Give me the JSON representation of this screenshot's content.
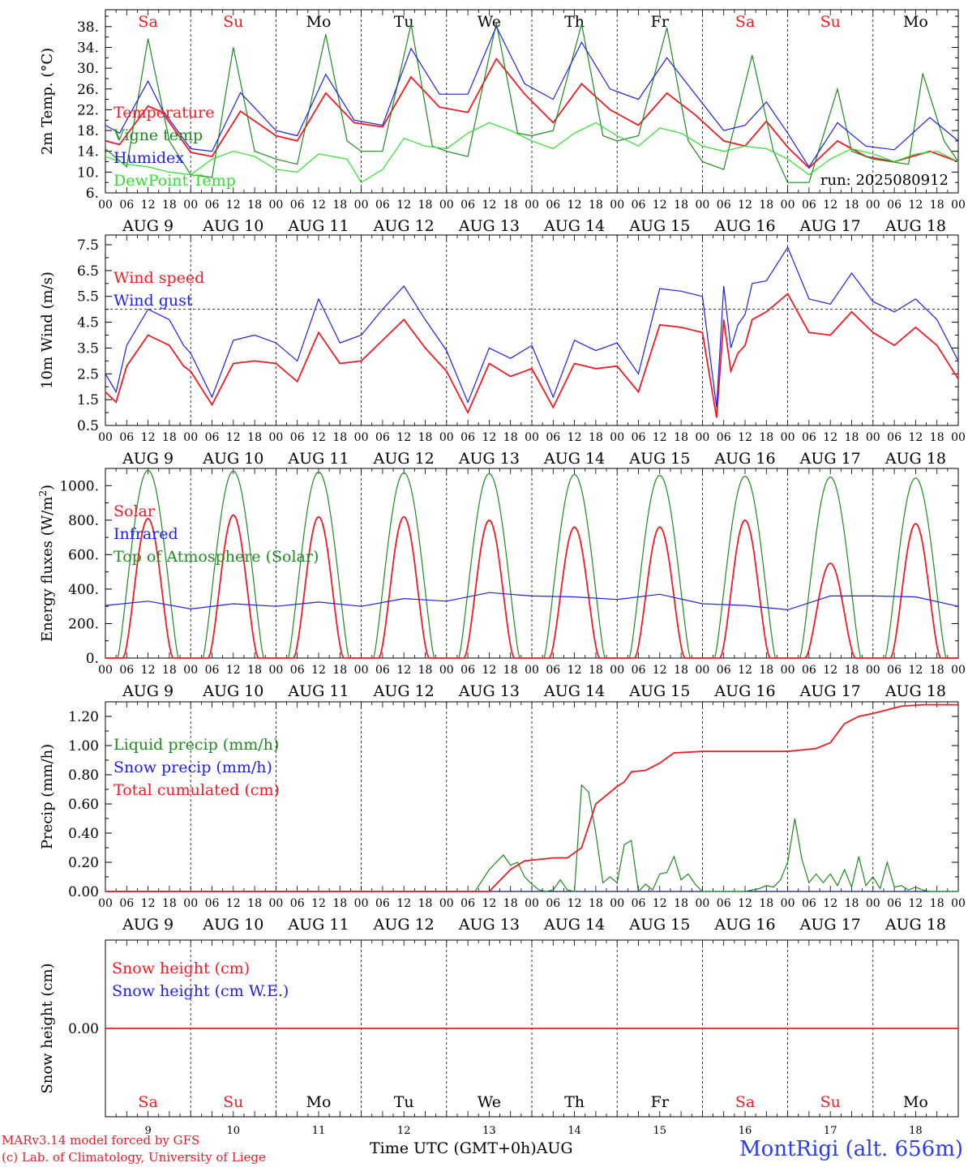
{
  "site_label": "MontRigi (alt. 656m)",
  "credit_model": "MARv3.14 model forced by GFS",
  "credit_lab": "(c) Lab. of Climatology, University of Liege",
  "x_axis_title": "Time UTC (GMT+0h)",
  "month_label": "AUG",
  "run_label": "run: 2025080912",
  "days": {
    "weekday": [
      "Sa",
      "Su",
      "Mo",
      "Tu",
      "We",
      "Th",
      "Fr",
      "Sa",
      "Su",
      "Mo"
    ],
    "weekend": [
      true,
      true,
      false,
      false,
      false,
      false,
      false,
      true,
      true,
      false
    ],
    "date_labels": [
      "AUG  9",
      "AUG 10",
      "AUG 11",
      "AUG 12",
      "AUG 13",
      "AUG 14",
      "AUG 15",
      "AUG 16",
      "AUG 17",
      "AUG 18"
    ],
    "date_numbers": [
      "9",
      "10",
      "11",
      "12",
      "13",
      "14",
      "15",
      "16",
      "17",
      "18"
    ],
    "hour_ticks": [
      "00",
      "06",
      "12",
      "18"
    ],
    "last_tick": "00"
  },
  "colors": {
    "red": "#ee1c25",
    "green": "#1f8a1f",
    "blue": "#1f1fe6",
    "lightgreen": "#2ee02e"
  },
  "chart_data": [
    {
      "type": "line",
      "id": "temperature",
      "ylabel": "2m Temp. (°C)",
      "ylim": [
        6,
        40
      ],
      "yticks": [
        "6.",
        "10.",
        "14.",
        "18.",
        "22.",
        "26.",
        "30.",
        "34.",
        "38."
      ],
      "legend": [
        "Temperature",
        "Vigne temp",
        "Humidex",
        "DewPoint Temp"
      ],
      "series": [
        {
          "name": "Temperature",
          "color": "red",
          "x_hours": [
            0,
            4,
            12,
            16,
            24,
            30,
            38,
            48,
            54,
            62,
            70,
            78,
            86,
            94,
            102,
            110,
            118,
            126,
            134,
            142,
            150,
            158,
            166,
            174,
            180,
            186,
            192,
            198,
            206,
            214,
            222,
            232,
            240
          ],
          "y": [
            16,
            15.3,
            22.7,
            21.5,
            13.8,
            13,
            21.7,
            17,
            16,
            25.2,
            19.5,
            18.7,
            28.3,
            22.5,
            21.5,
            31.8,
            25,
            19.5,
            27,
            22,
            19,
            25.2,
            21,
            16,
            15,
            19.8,
            14.8,
            10.8,
            16,
            13,
            12,
            14,
            12
          ]
        },
        {
          "name": "Vigne temp",
          "color": "green",
          "x_hours": [
            0,
            6,
            12,
            18,
            24,
            30,
            36,
            42,
            48,
            54,
            62,
            68,
            72,
            78,
            86,
            92,
            96,
            102,
            110,
            116,
            120,
            126,
            134,
            140,
            144,
            150,
            158,
            164,
            168,
            174,
            182,
            188,
            192,
            198,
            206,
            210,
            216,
            226,
            230,
            236,
            240
          ],
          "y": [
            14.5,
            11,
            35.7,
            16,
            9.5,
            9,
            34,
            14,
            12.5,
            11.5,
            36.5,
            16,
            14,
            14,
            38.5,
            15,
            14,
            13,
            38.7,
            17.5,
            17,
            18,
            38.5,
            17,
            16,
            17,
            37.8,
            16,
            12,
            10.5,
            32.5,
            14,
            8,
            8,
            26,
            14,
            12.5,
            11.5,
            29,
            16,
            12
          ]
        },
        {
          "name": "Humidex",
          "color": "blue",
          "x_hours": [
            0,
            4,
            12,
            16,
            24,
            30,
            38,
            48,
            54,
            62,
            70,
            78,
            86,
            94,
            102,
            110,
            118,
            126,
            134,
            142,
            150,
            158,
            166,
            174,
            180,
            186,
            192,
            198,
            206,
            214,
            222,
            232,
            240
          ],
          "y": [
            19,
            17.5,
            27.5,
            22,
            14.5,
            14,
            25.3,
            18,
            17,
            28.8,
            20,
            19,
            33.8,
            25,
            25,
            38,
            27,
            24,
            35,
            26,
            24,
            32,
            25,
            18,
            19,
            23.5,
            17.5,
            11,
            19.5,
            15,
            14.3,
            20.5,
            16
          ]
        },
        {
          "name": "DewPoint Temp",
          "color": "lightgreen",
          "x_hours": [
            0,
            6,
            12,
            18,
            24,
            30,
            36,
            42,
            48,
            54,
            60,
            68,
            72,
            78,
            84,
            90,
            96,
            102,
            108,
            114,
            120,
            126,
            132,
            138,
            144,
            150,
            156,
            162,
            168,
            174,
            180,
            186,
            192,
            198,
            204,
            210,
            216,
            222,
            228,
            234,
            240
          ],
          "y": [
            13,
            11.5,
            11,
            10,
            9.5,
            12.5,
            14,
            13,
            10.5,
            10,
            13.5,
            12.5,
            8,
            10.5,
            16.5,
            15,
            14.5,
            17.5,
            19.5,
            18,
            16,
            14.5,
            17.5,
            19.5,
            17,
            15,
            18.5,
            17.5,
            15,
            14,
            15,
            14.5,
            12.5,
            9.5,
            12.5,
            14.5,
            13.5,
            12,
            13.5,
            14,
            12
          ]
        }
      ]
    },
    {
      "type": "line",
      "id": "wind",
      "ylabel": "10m Wind (m/s)",
      "ylim": [
        0.5,
        7.5
      ],
      "yticks": [
        "0.5",
        "1.5",
        "2.5",
        "3.5",
        "4.5",
        "5.5",
        "6.5",
        "7.5"
      ],
      "ref_line": 5,
      "legend": [
        "Wind speed",
        "Wind gust"
      ],
      "series": [
        {
          "name": "Wind speed",
          "color": "red",
          "x_hours": [
            0,
            3,
            6,
            12,
            18,
            22,
            24,
            30,
            36,
            42,
            48,
            54,
            60,
            66,
            72,
            78,
            84,
            90,
            96,
            102,
            108,
            114,
            120,
            126,
            132,
            138,
            144,
            150,
            156,
            162,
            168,
            172,
            174,
            176,
            178,
            180,
            182,
            186,
            192,
            198,
            204,
            210,
            216,
            222,
            228,
            234,
            240
          ],
          "y": [
            1.8,
            1.4,
            2.8,
            4.0,
            3.6,
            2.8,
            2.6,
            1.3,
            2.9,
            3.0,
            2.9,
            2.2,
            4.1,
            2.9,
            3.0,
            3.8,
            4.6,
            3.5,
            2.6,
            1.0,
            2.9,
            2.4,
            2.7,
            1.2,
            2.9,
            2.7,
            2.8,
            1.8,
            4.4,
            4.3,
            4.1,
            0.8,
            4.6,
            2.6,
            3.3,
            3.6,
            4.6,
            4.9,
            5.6,
            4.1,
            4.0,
            4.9,
            4.1,
            3.6,
            4.3,
            3.6,
            2.3
          ]
        },
        {
          "name": "Wind gust",
          "color": "blue",
          "x_hours": [
            0,
            3,
            6,
            12,
            18,
            22,
            24,
            30,
            36,
            42,
            48,
            54,
            60,
            66,
            72,
            78,
            84,
            90,
            96,
            102,
            108,
            114,
            120,
            126,
            132,
            138,
            144,
            150,
            156,
            162,
            168,
            172,
            174,
            176,
            178,
            180,
            182,
            186,
            192,
            198,
            204,
            210,
            216,
            222,
            228,
            234,
            240
          ],
          "y": [
            2.5,
            1.8,
            3.6,
            5.0,
            4.6,
            3.6,
            3.3,
            1.6,
            3.8,
            4.0,
            3.7,
            3.0,
            5.4,
            3.7,
            4.0,
            5.0,
            5.9,
            4.6,
            3.4,
            1.4,
            3.5,
            3.1,
            3.6,
            1.6,
            3.8,
            3.4,
            3.7,
            2.5,
            5.8,
            5.7,
            5.5,
            1.2,
            5.9,
            3.5,
            4.4,
            4.8,
            6.0,
            6.1,
            7.4,
            5.4,
            5.2,
            6.4,
            5.3,
            4.9,
            5.4,
            4.6,
            3.0
          ]
        }
      ]
    },
    {
      "type": "line",
      "id": "energy",
      "ylabel": "Energy fluxes (W/m²)",
      "ylim": [
        0,
        1100
      ],
      "yticks": [
        "0.",
        "200.",
        "400.",
        "600.",
        "800.",
        "1000."
      ],
      "legend": [
        "Solar",
        "Infrared",
        "Top of Atmosphere (Solar)"
      ],
      "solar_peaks": [
        810,
        830,
        820,
        820,
        800,
        760,
        760,
        800,
        550,
        780
      ],
      "toa_peaks": [
        1090,
        1085,
        1080,
        1075,
        1070,
        1065,
        1060,
        1055,
        1050,
        1045
      ],
      "series": [
        {
          "name": "Infrared",
          "color": "blue",
          "x_hours": [
            0,
            12,
            24,
            36,
            48,
            60,
            72,
            84,
            96,
            108,
            120,
            132,
            144,
            156,
            168,
            180,
            192,
            204,
            216,
            228,
            240
          ],
          "y": [
            305,
            330,
            285,
            315,
            300,
            325,
            300,
            345,
            330,
            380,
            360,
            355,
            340,
            370,
            315,
            305,
            280,
            360,
            360,
            355,
            300
          ]
        }
      ]
    },
    {
      "type": "line",
      "id": "precip",
      "ylabel": "Precip (mm/h)",
      "ylim": [
        0,
        1.3
      ],
      "yticks": [
        "0.00",
        "0.20",
        "0.40",
        "0.60",
        "0.80",
        "1.00",
        "1.20"
      ],
      "legend": [
        "Liquid precip (mm/h)",
        "Snow precip (mm/h)",
        "Total cumulated (cm)"
      ],
      "series": [
        {
          "name": "Liquid precip (mm/h)",
          "color": "green",
          "x_hours": [
            0,
            104,
            108,
            112,
            114,
            116,
            118,
            120,
            122,
            124,
            126,
            128,
            130,
            132,
            134,
            136,
            138,
            140,
            142,
            144,
            146,
            148,
            150,
            152,
            154,
            156,
            158,
            160,
            162,
            164,
            166,
            168,
            180,
            184,
            186,
            188,
            190,
            192,
            194,
            196,
            198,
            200,
            202,
            204,
            206,
            208,
            210,
            212,
            214,
            216,
            218,
            220,
            222,
            224,
            226,
            228,
            230,
            232,
            234,
            240
          ],
          "y": [
            0,
            0,
            0.15,
            0.25,
            0.18,
            0.2,
            0.1,
            0.05,
            0.01,
            0.0,
            0.01,
            0.08,
            0.01,
            0.0,
            0.73,
            0.68,
            0.4,
            0.06,
            0.1,
            0.06,
            0.32,
            0.35,
            0.0,
            0.05,
            0.01,
            0.12,
            0.13,
            0.24,
            0.08,
            0.12,
            0.05,
            0.0,
            0.0,
            0.02,
            0.04,
            0.03,
            0.08,
            0.2,
            0.5,
            0.22,
            0.06,
            0.12,
            0.06,
            0.12,
            0.04,
            0.15,
            0.03,
            0.24,
            0.04,
            0.1,
            0.02,
            0.2,
            0.03,
            0.04,
            0.01,
            0.03,
            0.01,
            0.0,
            0.0,
            0.0
          ]
        },
        {
          "name": "Total cumulated (cm)",
          "color": "red",
          "x_hours": [
            0,
            108,
            114,
            118,
            126,
            130,
            134,
            138,
            144,
            146,
            148,
            152,
            156,
            160,
            168,
            180,
            192,
            200,
            204,
            208,
            212,
            216,
            224,
            230,
            240
          ],
          "y": [
            0,
            0,
            0.15,
            0.21,
            0.23,
            0.23,
            0.3,
            0.6,
            0.72,
            0.75,
            0.82,
            0.83,
            0.88,
            0.95,
            0.96,
            0.96,
            0.96,
            0.98,
            1.02,
            1.15,
            1.2,
            1.22,
            1.27,
            1.28,
            1.28
          ]
        }
      ]
    },
    {
      "type": "line",
      "id": "snow",
      "ylabel": "Snow height (cm)",
      "ylim": [
        -1,
        1
      ],
      "yticks": [
        "0.00"
      ],
      "legend": [
        "Snow height (cm)",
        "Snow height (cm W.E.)"
      ],
      "series": [
        {
          "name": "Snow height (cm)",
          "color": "red",
          "x_hours": [
            0,
            240
          ],
          "y": [
            0,
            0
          ]
        }
      ]
    }
  ]
}
